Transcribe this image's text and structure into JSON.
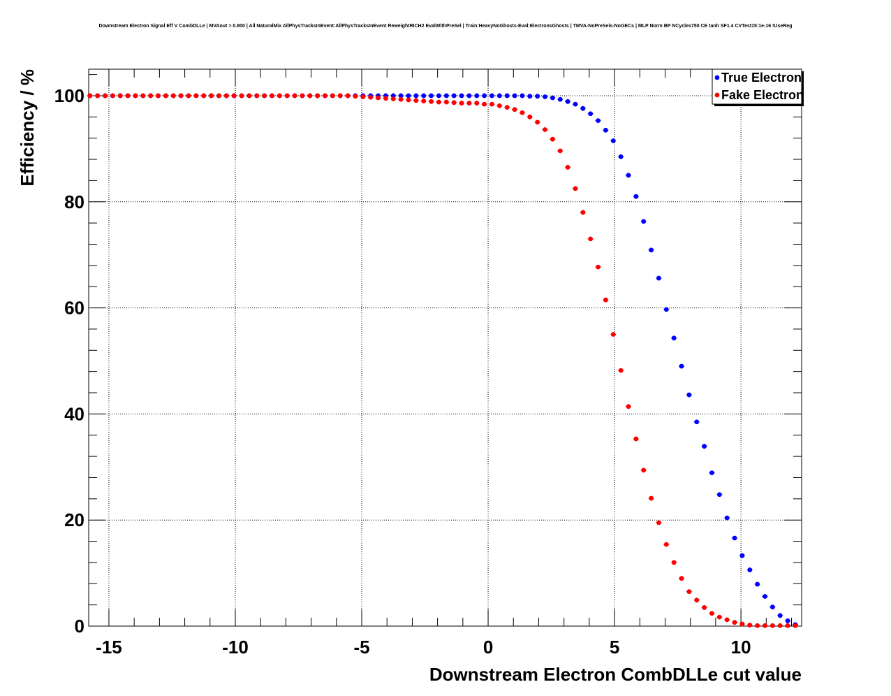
{
  "chart_data": {
    "type": "scatter",
    "title": "Downstream Electron Signal Eff V CombDLLe | MVAout > 0.800 | All NaturalMix AllPhysTracksInEvent:AllPhysTracksInEvent ReweightRICH2 EvalWithPreSel | Train:HeavyNoGhosts-Eval:ElectronsGhosts | TMVA-NoPreSels-NoGECs | MLP Norm BP NCycles750 CE tanh SF1.4 CVTest15:1e-16 !UseReg",
    "xlabel": "Downstream Electron CombDLLe cut value",
    "ylabel": "Efficiency / %",
    "xlim": [
      -15.8,
      12.4
    ],
    "ylim": [
      0,
      105
    ],
    "x_ticks": [
      -15,
      -10,
      -5,
      0,
      5,
      10
    ],
    "x_tick_labels": [
      "-15",
      "-10",
      "-5",
      "0",
      "5",
      "10"
    ],
    "y_ticks": [
      0,
      20,
      40,
      60,
      80,
      100
    ],
    "y_tick_labels": [
      "0",
      "20",
      "40",
      "60",
      "80",
      "100"
    ],
    "grid": true,
    "legend_position": "top-right",
    "x": [
      -15.75,
      -15.45,
      -15.15,
      -14.85,
      -14.55,
      -14.25,
      -13.95,
      -13.65,
      -13.35,
      -13.05,
      -12.75,
      -12.45,
      -12.15,
      -11.85,
      -11.55,
      -11.25,
      -10.95,
      -10.65,
      -10.35,
      -10.05,
      -9.75,
      -9.45,
      -9.15,
      -8.85,
      -8.55,
      -8.25,
      -7.95,
      -7.65,
      -7.35,
      -7.05,
      -6.75,
      -6.45,
      -6.15,
      -5.85,
      -5.55,
      -5.25,
      -4.95,
      -4.65,
      -4.35,
      -4.05,
      -3.75,
      -3.45,
      -3.15,
      -2.85,
      -2.55,
      -2.25,
      -1.95,
      -1.65,
      -1.35,
      -1.05,
      -0.75,
      -0.45,
      -0.15,
      0.15,
      0.45,
      0.75,
      1.05,
      1.35,
      1.65,
      1.95,
      2.25,
      2.55,
      2.85,
      3.15,
      3.45,
      3.75,
      4.05,
      4.35,
      4.65,
      4.95,
      5.25,
      5.55,
      5.85,
      6.15,
      6.45,
      6.75,
      7.05,
      7.35,
      7.65,
      7.95,
      8.25,
      8.55,
      8.85,
      9.15,
      9.45,
      9.75,
      10.05,
      10.35,
      10.65,
      10.95,
      11.25,
      11.55,
      11.85,
      12.15
    ],
    "series": [
      {
        "name": "True Electron",
        "color": "#0000ff",
        "values": [
          100,
          100,
          100,
          100,
          100,
          100,
          100,
          100,
          100,
          100,
          100,
          100,
          100,
          100,
          100,
          100,
          100,
          100,
          100,
          100,
          100,
          100,
          100,
          100,
          100,
          100,
          100,
          100,
          100,
          100,
          100,
          100,
          100,
          100,
          100,
          100,
          100,
          100,
          100,
          100,
          100,
          100,
          100,
          100,
          100,
          100,
          100,
          100,
          100,
          100,
          100,
          100,
          100,
          100,
          100,
          100,
          100,
          100,
          99.9,
          99.9,
          99.8,
          99.6,
          99.3,
          98.9,
          98.4,
          97.6,
          96.6,
          95.3,
          93.5,
          91.5,
          88.5,
          85.0,
          81.0,
          76.3,
          70.9,
          65.6,
          59.7,
          54.3,
          49.0,
          43.6,
          38.5,
          33.9,
          28.9,
          24.8,
          20.4,
          16.6,
          13.3,
          10.6,
          7.9,
          5.6,
          3.6,
          2.0,
          1.0,
          0.3
        ]
      },
      {
        "name": "Fake Electron",
        "color": "#ff0000",
        "values": [
          100,
          100,
          100,
          100,
          100,
          100,
          100,
          100,
          100,
          100,
          100,
          100,
          100,
          100,
          100,
          100,
          100,
          100,
          100,
          100,
          100,
          100,
          100,
          100,
          100,
          100,
          100,
          100,
          100,
          100,
          100,
          100,
          100,
          100,
          100,
          99.9,
          99.8,
          99.7,
          99.6,
          99.5,
          99.4,
          99.3,
          99.2,
          99.1,
          99.0,
          98.9,
          98.8,
          98.8,
          98.7,
          98.6,
          98.6,
          98.6,
          98.4,
          98.4,
          98.1,
          97.8,
          97.4,
          96.8,
          96.0,
          95.0,
          93.6,
          91.8,
          89.6,
          86.5,
          82.5,
          78.0,
          73.0,
          67.7,
          61.5,
          55.0,
          48.2,
          41.4,
          35.3,
          29.4,
          24.1,
          19.5,
          15.4,
          12.0,
          9.0,
          6.5,
          4.9,
          3.5,
          2.4,
          1.7,
          1.2,
          0.7,
          0.4,
          0.2,
          0.1,
          0.1,
          0.1,
          0.1,
          0.1,
          0.1
        ]
      }
    ]
  }
}
